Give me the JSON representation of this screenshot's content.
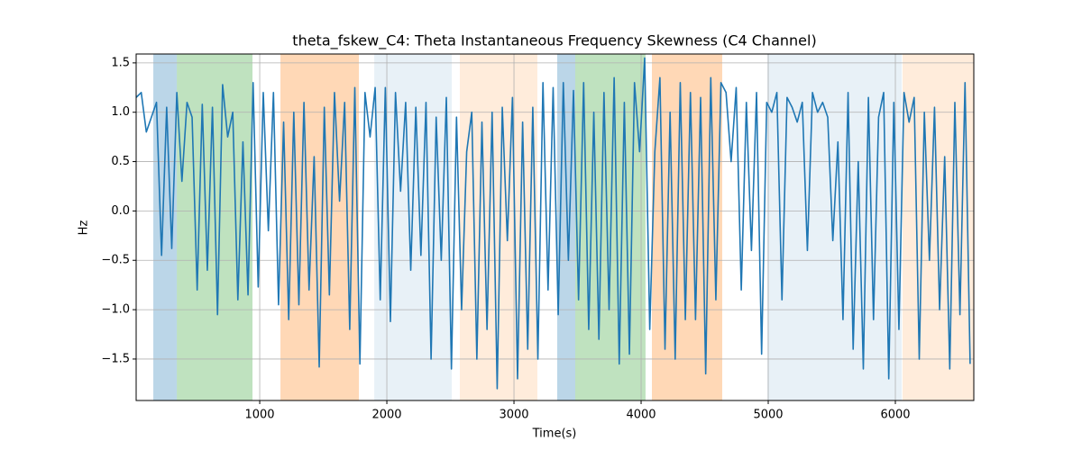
{
  "chart_data": {
    "type": "line",
    "title": "theta_fskew_C4: Theta Instantaneous Frequency Skewness (C4 Channel)",
    "x_label": "Time(s)",
    "y_label": "Hz",
    "xlim": [
      28,
      6617
    ],
    "ylim": [
      -1.92,
      1.59
    ],
    "xticks": [
      1000,
      2000,
      3000,
      4000,
      5000,
      6000
    ],
    "yticks": [
      {
        "value": -1.5,
        "label": "−1.5"
      },
      {
        "value": -1.0,
        "label": "−1.0"
      },
      {
        "value": -0.5,
        "label": "−0.5"
      },
      {
        "value": 0.0,
        "label": "0.0"
      },
      {
        "value": 0.5,
        "label": "0.5"
      },
      {
        "value": 1.0,
        "label": "1.0"
      },
      {
        "value": 1.5,
        "label": "1.5"
      }
    ],
    "grid": true,
    "regions": [
      {
        "start": 163,
        "end": 348,
        "color": "#1f77b4",
        "alpha": 0.3
      },
      {
        "start": 348,
        "end": 943,
        "color": "#2ca02c",
        "alpha": 0.3
      },
      {
        "start": 1163,
        "end": 1780,
        "color": "#ff7f0e",
        "alpha": 0.3
      },
      {
        "start": 1901,
        "end": 2511,
        "color": "#1f77b4",
        "alpha": 0.1
      },
      {
        "start": 2574,
        "end": 3184,
        "color": "#ff7f0e",
        "alpha": 0.15
      },
      {
        "start": 3340,
        "end": 3482,
        "color": "#1f77b4",
        "alpha": 0.3
      },
      {
        "start": 3482,
        "end": 4035,
        "color": "#2ca02c",
        "alpha": 0.3
      },
      {
        "start": 4085,
        "end": 4638,
        "color": "#ff7f0e",
        "alpha": 0.3
      },
      {
        "start": 4993,
        "end": 6050,
        "color": "#1f77b4",
        "alpha": 0.1
      },
      {
        "start": 6057,
        "end": 6617,
        "color": "#ff7f0e",
        "alpha": 0.15
      }
    ],
    "x": [
      28,
      68,
      108,
      148,
      188,
      228,
      268,
      308,
      348,
      388,
      428,
      468,
      508,
      548,
      588,
      628,
      668,
      708,
      748,
      788,
      828,
      868,
      908,
      948,
      988,
      1028,
      1068,
      1108,
      1148,
      1188,
      1228,
      1268,
      1308,
      1348,
      1388,
      1428,
      1468,
      1508,
      1548,
      1588,
      1628,
      1668,
      1708,
      1748,
      1788,
      1828,
      1868,
      1908,
      1948,
      1988,
      2028,
      2068,
      2108,
      2148,
      2188,
      2228,
      2268,
      2308,
      2348,
      2388,
      2428,
      2468,
      2508,
      2548,
      2588,
      2628,
      2668,
      2708,
      2748,
      2788,
      2828,
      2868,
      2908,
      2948,
      2988,
      3028,
      3068,
      3108,
      3148,
      3188,
      3228,
      3268,
      3308,
      3348,
      3388,
      3428,
      3468,
      3508,
      3548,
      3588,
      3628,
      3668,
      3708,
      3748,
      3788,
      3828,
      3868,
      3908,
      3948,
      3988,
      4028,
      4068,
      4108,
      4148,
      4188,
      4228,
      4268,
      4308,
      4348,
      4388,
      4428,
      4468,
      4508,
      4548,
      4588,
      4628,
      4668,
      4708,
      4748,
      4788,
      4828,
      4868,
      4908,
      4948,
      4988,
      5028,
      5068,
      5108,
      5148,
      5188,
      5228,
      5268,
      5308,
      5348,
      5388,
      5428,
      5468,
      5508,
      5548,
      5588,
      5628,
      5668,
      5708,
      5748,
      5788,
      5828,
      5868,
      5908,
      5948,
      5988,
      6028,
      6068,
      6108,
      6148,
      6188,
      6228,
      6268,
      6308,
      6348,
      6388,
      6428,
      6468,
      6508,
      6548,
      6588
    ],
    "series": [
      {
        "name": "theta_fskew_C4",
        "color": "#1f77b4",
        "values": [
          1.15,
          1.2,
          0.8,
          0.95,
          1.1,
          -0.45,
          1.05,
          -0.38,
          1.2,
          0.3,
          1.1,
          0.95,
          -0.8,
          1.08,
          -0.6,
          1.05,
          -1.05,
          1.28,
          0.75,
          1.0,
          -0.9,
          0.7,
          -0.85,
          1.3,
          -0.77,
          1.2,
          -0.2,
          1.2,
          -0.95,
          0.9,
          -1.1,
          1.0,
          -0.95,
          1.1,
          -0.8,
          0.55,
          -1.58,
          1.05,
          -0.85,
          1.2,
          0.1,
          1.1,
          -1.2,
          1.25,
          -1.55,
          1.2,
          0.75,
          1.25,
          -0.9,
          1.25,
          -1.12,
          1.2,
          0.2,
          1.1,
          -0.6,
          1.05,
          -0.45,
          1.1,
          -1.5,
          0.95,
          -0.5,
          1.15,
          -1.6,
          0.95,
          -1.0,
          0.6,
          1.0,
          -1.5,
          0.9,
          -1.2,
          1.0,
          -1.8,
          1.05,
          -0.3,
          1.15,
          -1.7,
          0.9,
          -1.4,
          1.05,
          -1.5,
          1.3,
          -0.8,
          1.25,
          -1.05,
          1.3,
          -0.5,
          1.22,
          -0.9,
          1.3,
          -1.2,
          1.0,
          -1.3,
          1.2,
          -1.0,
          1.35,
          -1.55,
          1.1,
          -1.45,
          1.3,
          0.6,
          1.55,
          -1.2,
          0.6,
          1.35,
          -1.4,
          1.0,
          -1.5,
          1.3,
          -1.1,
          1.2,
          -1.1,
          1.15,
          -1.65,
          1.35,
          -0.9,
          1.3,
          1.2,
          0.5,
          1.25,
          -0.8,
          1.1,
          -0.4,
          1.2,
          -1.45,
          1.1,
          1.0,
          1.2,
          -0.9,
          1.15,
          1.05,
          0.9,
          1.1,
          -0.4,
          1.2,
          1.0,
          1.1,
          0.95,
          -0.3,
          0.7,
          -1.1,
          1.2,
          -1.4,
          0.5,
          -1.6,
          1.15,
          -1.1,
          0.95,
          1.2,
          -1.7,
          1.1,
          -1.2,
          1.2,
          0.9,
          1.15,
          -1.5,
          1.0,
          -0.5,
          1.05,
          -1.0,
          0.55,
          -1.6,
          1.1,
          -1.05,
          1.3,
          -1.55
        ]
      }
    ]
  }
}
